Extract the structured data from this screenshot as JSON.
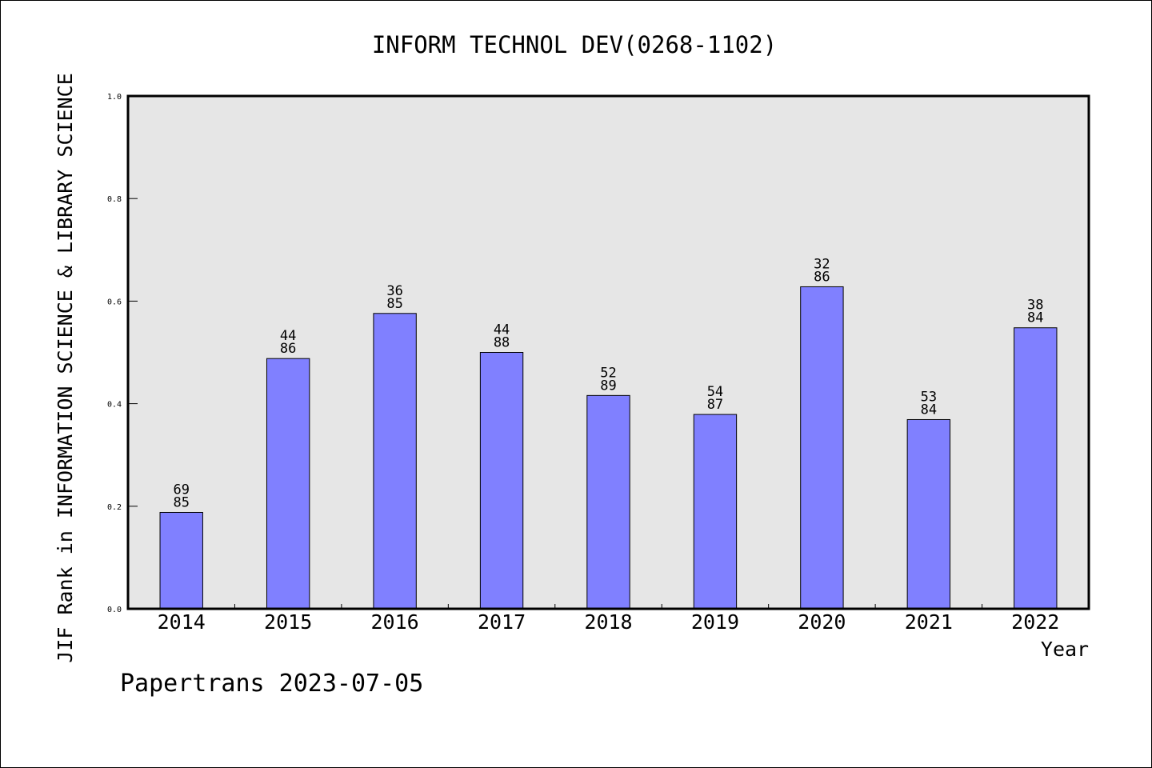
{
  "chart_data": {
    "type": "bar",
    "title": "INFORM TECHNOL DEV(0268-1102)",
    "xlabel": "Year",
    "ylabel": "JIF Rank in INFORMATION SCIENCE & LIBRARY SCIENCE",
    "ylim": [
      0,
      1.0
    ],
    "yticks": [
      "0.0",
      "0.2",
      "0.4",
      "0.6",
      "0.8",
      "1.0"
    ],
    "categories": [
      "2014",
      "2015",
      "2016",
      "2017",
      "2018",
      "2019",
      "2020",
      "2021",
      "2022"
    ],
    "values": [
      0.188,
      0.488,
      0.576,
      0.5,
      0.416,
      0.379,
      0.628,
      0.369,
      0.548
    ],
    "ranks": [
      "69",
      "44",
      "36",
      "44",
      "52",
      "54",
      "32",
      "53",
      "38"
    ],
    "totals": [
      "85",
      "86",
      "85",
      "88",
      "89",
      "87",
      "86",
      "84",
      "84"
    ],
    "bar_color": "#8080ff",
    "plot_background": "#e6e6e6",
    "grid": false
  },
  "footer": "Papertrans 2023-07-05"
}
